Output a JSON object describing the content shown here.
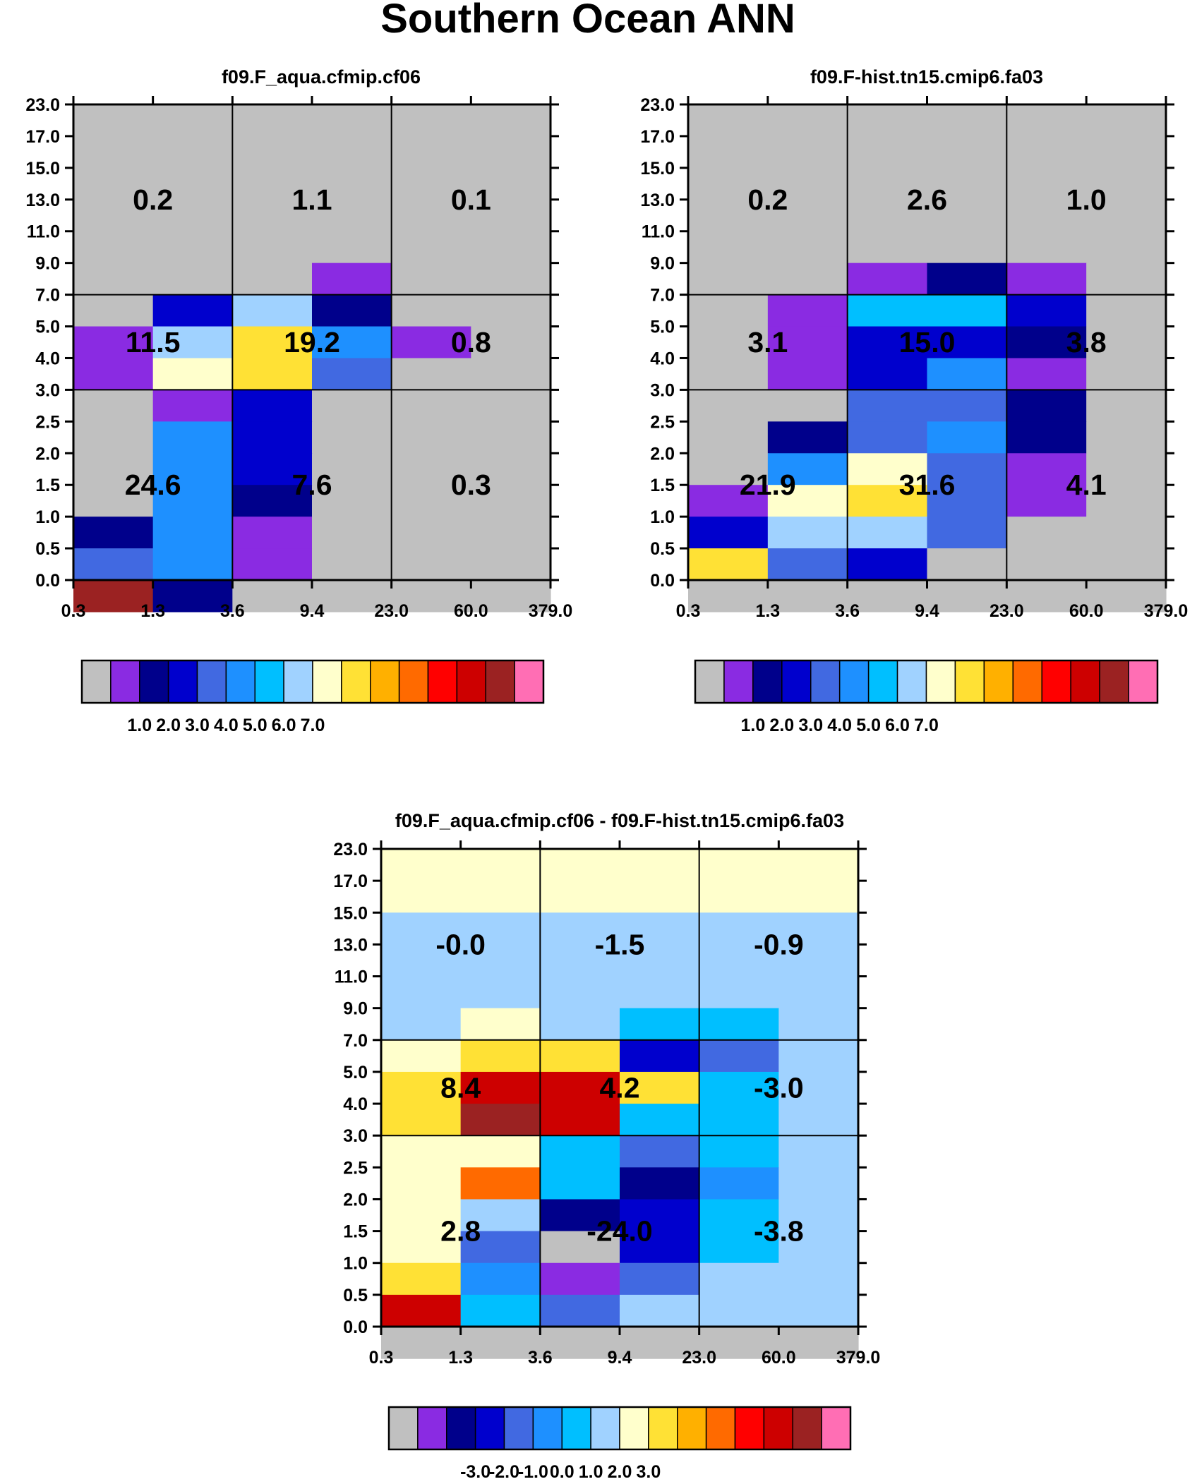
{
  "title": "Southern Ocean ANN",
  "chart_data": [
    {
      "type": "heatmap",
      "title": "f09.F_aqua.cfmip.cf06",
      "x_tick_labels": [
        "0.3",
        "1.3",
        "3.6",
        "9.4",
        "23.0",
        "60.0",
        "379.0"
      ],
      "y_tick_labels": [
        "0.0",
        "0.5",
        "1.0",
        "1.5",
        "2.0",
        "2.5",
        "3.0",
        "4.0",
        "5.0",
        "7.0",
        "9.0",
        "11.0",
        "13.0",
        "15.0",
        "17.0",
        "23.0"
      ],
      "palette": [
        "#c0c0c0",
        "#8a2be2",
        "#00008b",
        "#0000cd",
        "#4169e1",
        "#1e90ff",
        "#00bfff",
        "#a0d2ff",
        "#ffffcc",
        "#ffe135",
        "#ffb000",
        "#ff6a00",
        "#ff0000",
        "#cd0000",
        "#9b2222",
        "#ff6eb4"
      ],
      "colorbar_labels": [
        "1.0",
        "2.0",
        "3.0",
        "4.0",
        "5.0",
        "6.0",
        "7.0"
      ],
      "colorbar_label_slots": [
        1,
        2,
        3,
        4,
        5,
        6,
        7
      ],
      "cells": [
        [
          0,
          0,
          0,
          0,
          0,
          0
        ],
        [
          0,
          0,
          0,
          0,
          0,
          0
        ],
        [
          0,
          0,
          0,
          0,
          0,
          0
        ],
        [
          0,
          0,
          0,
          0,
          0,
          0
        ],
        [
          0,
          0,
          0,
          0,
          0,
          0
        ],
        [
          0,
          0,
          0,
          1,
          0,
          0
        ],
        [
          0,
          3,
          7,
          2,
          0,
          0
        ],
        [
          1,
          7,
          9,
          5,
          1,
          0
        ],
        [
          1,
          8,
          9,
          4,
          0,
          0
        ],
        [
          0,
          1,
          3,
          0,
          0,
          0
        ],
        [
          0,
          5,
          3,
          0,
          0,
          0
        ],
        [
          0,
          5,
          3,
          0,
          0,
          0
        ],
        [
          0,
          5,
          2,
          0,
          0,
          0
        ],
        [
          2,
          5,
          1,
          0,
          0,
          0
        ],
        [
          4,
          5,
          1,
          0,
          0,
          0
        ],
        [
          14,
          2,
          0,
          0,
          0,
          0
        ]
      ],
      "region_values": [
        "0.2",
        "1.1",
        "0.1",
        "11.5",
        "19.2",
        "0.8",
        "24.6",
        "7.6",
        "0.3"
      ]
    },
    {
      "type": "heatmap",
      "title": "f09.F-hist.tn15.cmip6.fa03",
      "x_tick_labels": [
        "0.3",
        "1.3",
        "3.6",
        "9.4",
        "23.0",
        "60.0",
        "379.0"
      ],
      "y_tick_labels": [
        "0.0",
        "0.5",
        "1.0",
        "1.5",
        "2.0",
        "2.5",
        "3.0",
        "4.0",
        "5.0",
        "7.0",
        "9.0",
        "11.0",
        "13.0",
        "15.0",
        "17.0",
        "23.0"
      ],
      "palette": [
        "#c0c0c0",
        "#8a2be2",
        "#00008b",
        "#0000cd",
        "#4169e1",
        "#1e90ff",
        "#00bfff",
        "#a0d2ff",
        "#ffffcc",
        "#ffe135",
        "#ffb000",
        "#ff6a00",
        "#ff0000",
        "#cd0000",
        "#9b2222",
        "#ff6eb4"
      ],
      "colorbar_labels": [
        "1.0",
        "2.0",
        "3.0",
        "4.0",
        "5.0",
        "6.0",
        "7.0"
      ],
      "colorbar_label_slots": [
        1,
        2,
        3,
        4,
        5,
        6,
        7
      ],
      "cells": [
        [
          0,
          0,
          0,
          0,
          0,
          0
        ],
        [
          0,
          0,
          0,
          0,
          0,
          0
        ],
        [
          0,
          0,
          0,
          0,
          0,
          0
        ],
        [
          0,
          0,
          0,
          0,
          0,
          0
        ],
        [
          0,
          0,
          0,
          0,
          0,
          0
        ],
        [
          0,
          0,
          1,
          2,
          1,
          0
        ],
        [
          0,
          1,
          6,
          6,
          3,
          0
        ],
        [
          0,
          1,
          3,
          3,
          2,
          0
        ],
        [
          0,
          1,
          3,
          5,
          1,
          0
        ],
        [
          0,
          0,
          4,
          4,
          2,
          0
        ],
        [
          0,
          2,
          4,
          5,
          2,
          0
        ],
        [
          0,
          5,
          8,
          4,
          1,
          0
        ],
        [
          1,
          8,
          9,
          4,
          1,
          0
        ],
        [
          3,
          7,
          7,
          4,
          0,
          0
        ],
        [
          9,
          4,
          3,
          0,
          0,
          0
        ],
        [
          0,
          0,
          0,
          0,
          0,
          0
        ]
      ],
      "region_values": [
        "0.2",
        "2.6",
        "1.0",
        "3.1",
        "15.0",
        "3.8",
        "21.9",
        "31.6",
        "4.1"
      ]
    },
    {
      "type": "heatmap",
      "title": "f09.F_aqua.cfmip.cf06 - f09.F-hist.tn15.cmip6.fa03",
      "x_tick_labels": [
        "0.3",
        "1.3",
        "3.6",
        "9.4",
        "23.0",
        "60.0",
        "379.0"
      ],
      "y_tick_labels": [
        "0.0",
        "0.5",
        "1.0",
        "1.5",
        "2.0",
        "2.5",
        "3.0",
        "4.0",
        "5.0",
        "7.0",
        "9.0",
        "11.0",
        "13.0",
        "15.0",
        "17.0",
        "23.0"
      ],
      "palette": [
        "#c0c0c0",
        "#8a2be2",
        "#00008b",
        "#0000cd",
        "#4169e1",
        "#1e90ff",
        "#00bfff",
        "#a0d2ff",
        "#ffffcc",
        "#ffe135",
        "#ffb000",
        "#ff6a00",
        "#ff0000",
        "#cd0000",
        "#9b2222",
        "#ff6eb4"
      ],
      "colorbar_labels": [
        "-3.0",
        "-2.0",
        "-1.0",
        "0.0",
        "1.0",
        "2.0",
        "3.0"
      ],
      "colorbar_label_slots": [
        2,
        3,
        4,
        5,
        6,
        7,
        8
      ],
      "cells": [
        [
          8,
          8,
          8,
          8,
          8,
          8
        ],
        [
          8,
          8,
          8,
          8,
          8,
          8
        ],
        [
          7,
          7,
          7,
          7,
          7,
          7
        ],
        [
          7,
          7,
          7,
          7,
          7,
          7
        ],
        [
          7,
          7,
          7,
          7,
          7,
          7
        ],
        [
          7,
          8,
          7,
          6,
          6,
          7
        ],
        [
          8,
          9,
          9,
          3,
          4,
          7
        ],
        [
          9,
          13,
          13,
          9,
          6,
          7
        ],
        [
          9,
          14,
          13,
          6,
          6,
          7
        ],
        [
          8,
          8,
          6,
          4,
          6,
          7
        ],
        [
          8,
          11,
          6,
          2,
          5,
          7
        ],
        [
          8,
          7,
          2,
          3,
          6,
          7
        ],
        [
          8,
          4,
          0,
          3,
          6,
          7
        ],
        [
          9,
          5,
          1,
          4,
          7,
          7
        ],
        [
          13,
          6,
          4,
          7,
          7,
          7
        ],
        [
          0,
          0,
          0,
          0,
          0,
          0
        ]
      ],
      "region_values": [
        "-0.0",
        "-1.5",
        "-0.9",
        "8.4",
        "4.2",
        "-3.0",
        "2.8",
        "-24.0",
        "-3.8"
      ]
    }
  ]
}
